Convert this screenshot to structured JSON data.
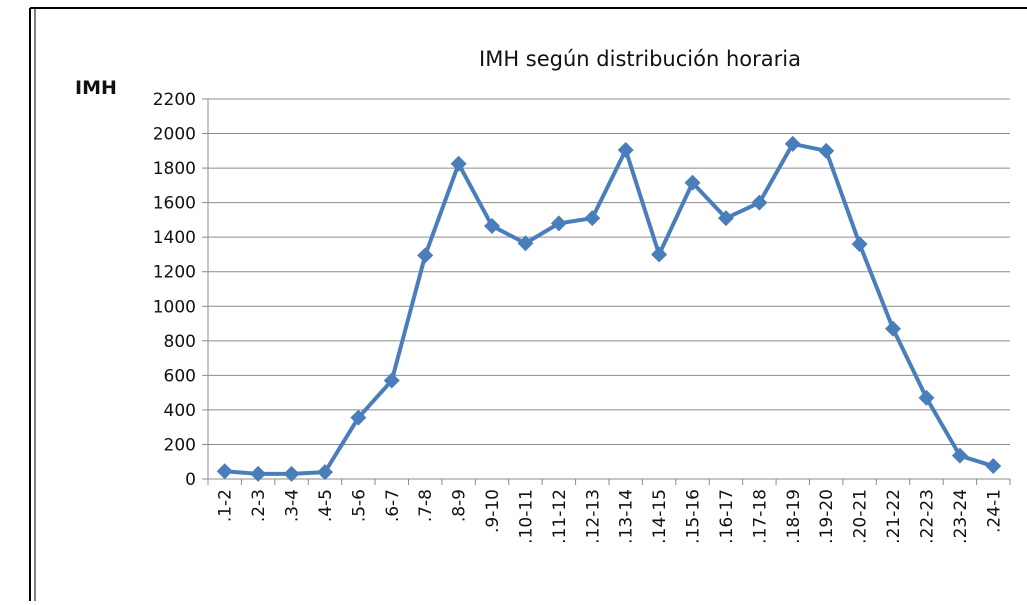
{
  "chart_data": {
    "type": "line",
    "title": "IMH según distribución horaria",
    "y_label": "IMH",
    "categories": [
      ".1-2",
      ".2-3",
      ".3-4",
      ".4-5",
      ".5-6",
      ".6-7",
      ".7-8",
      ".8-9",
      ".9-10",
      ".10-11",
      ".11-12",
      ".12-13",
      ".13-14",
      ".14-15",
      ".15-16",
      ".16-17",
      ".17-18",
      ".18-19",
      ".19-20",
      ".20-21",
      ".21-22",
      ".22-23",
      ".23-24",
      ".24-1"
    ],
    "series": [
      {
        "name": "IMH",
        "color": "#4a7ebb",
        "values": [
          45,
          30,
          30,
          40,
          355,
          570,
          1295,
          1825,
          1465,
          1365,
          1480,
          1510,
          1905,
          1300,
          1715,
          1510,
          1600,
          1940,
          1900,
          1360,
          870,
          470,
          135,
          75
        ]
      }
    ],
    "ylim": [
      0,
      2200
    ],
    "yticks": [
      0,
      200,
      400,
      600,
      800,
      1000,
      1200,
      1400,
      1600,
      1800,
      2000,
      2200
    ],
    "grid": true
  }
}
